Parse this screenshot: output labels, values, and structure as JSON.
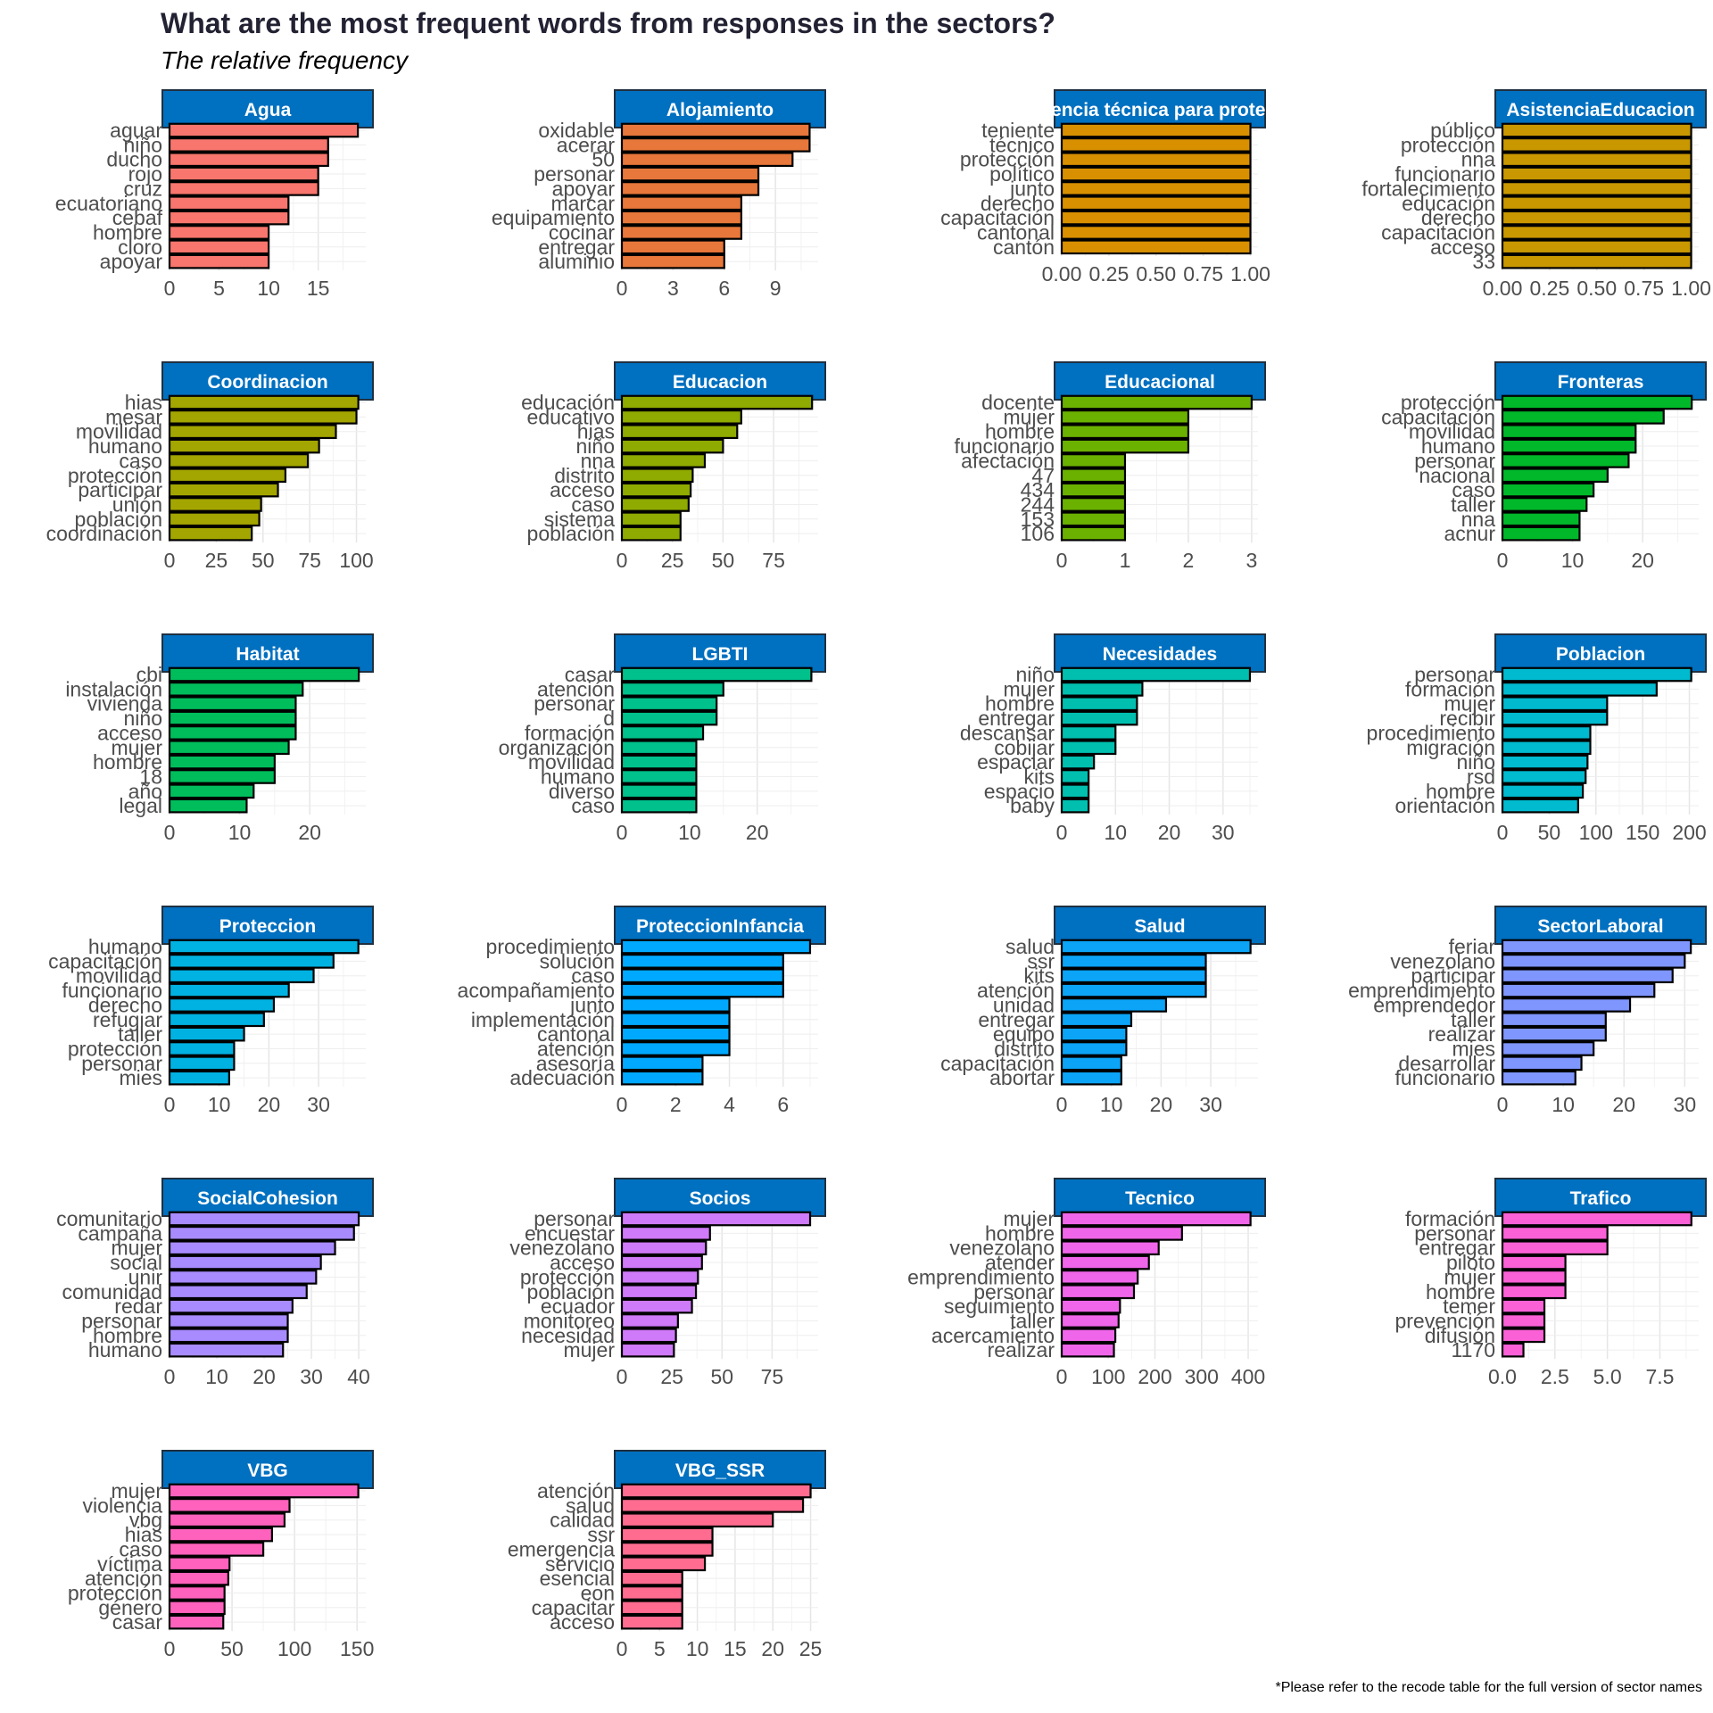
{
  "title": "What are the most frequent words from responses in the sectors?",
  "subtitle": "The relative frequency",
  "caption": "*Please refer to the recode table for the full version of sector names",
  "chart_data": [
    {
      "type": "bar",
      "orientation": "horizontal",
      "facet": "Agua",
      "color": "#F8766D",
      "categories": [
        "aguar",
        "niño",
        "ducho",
        "rojo",
        "cruz",
        "ecuatoriano",
        "cebaf",
        "hombre",
        "cloro",
        "apoyar"
      ],
      "values": [
        19,
        16,
        16,
        15,
        15,
        12,
        12,
        10,
        10,
        10
      ],
      "xlim": [
        0,
        19.8
      ],
      "xticks": [
        0,
        5,
        10,
        15
      ]
    },
    {
      "type": "bar",
      "orientation": "horizontal",
      "facet": "Alojamiento",
      "color": "#E7773A",
      "categories": [
        "oxidable",
        "acerar",
        "50",
        "personar",
        "apoyar",
        "marcar",
        "equipamiento",
        "cocinar",
        "entregar",
        "aluminio"
      ],
      "values": [
        11,
        11,
        10,
        8,
        8,
        7,
        7,
        7,
        6,
        6
      ],
      "xlim": [
        0,
        11.5
      ],
      "xticks": [
        0,
        3,
        6,
        9
      ]
    },
    {
      "type": "bar",
      "orientation": "horizontal",
      "facet": "Asistencia técnica para protección",
      "color": "#D89000",
      "categories": [
        "teniente",
        "técnico",
        "protección",
        "político",
        "junto",
        "derecho",
        "capacitación",
        "cantonal",
        "cantón"
      ],
      "values": [
        1,
        1,
        1,
        1,
        1,
        1,
        1,
        1,
        1
      ],
      "xlim": [
        0,
        1.04
      ],
      "xticks": [
        "0.00",
        "0.25",
        "0.50",
        "0.75",
        "1.00"
      ]
    },
    {
      "type": "bar",
      "orientation": "horizontal",
      "facet": "AsistenciaEducacion",
      "color": "#C99700",
      "categories": [
        "público",
        "protección",
        "nna",
        "funcionario",
        "fortalecimiento",
        "educación",
        "derecho",
        "capacitación",
        "acceso",
        "33"
      ],
      "values": [
        1,
        1,
        1,
        1,
        1,
        1,
        1,
        1,
        1,
        1
      ],
      "xlim": [
        0,
        1.04
      ],
      "xticks": [
        "0.00",
        "0.25",
        "0.50",
        "0.75",
        "1.00"
      ]
    },
    {
      "type": "bar",
      "orientation": "horizontal",
      "facet": "Coordinacion",
      "color": "#A3A500",
      "categories": [
        "hias",
        "mesar",
        "movilidad",
        "humano",
        "caso",
        "protección",
        "participar",
        "unión",
        "población",
        "coordinación"
      ],
      "values": [
        101,
        100,
        89,
        80,
        74,
        62,
        58,
        49,
        48,
        44
      ],
      "xlim": [
        0,
        105
      ],
      "xticks": [
        0,
        25,
        50,
        75,
        100
      ]
    },
    {
      "type": "bar",
      "orientation": "horizontal",
      "facet": "Educacion",
      "color": "#8FAA00",
      "categories": [
        "educación",
        "educativo",
        "hias",
        "niño",
        "nna",
        "distrito",
        "acceso",
        "caso",
        "sistema",
        "población"
      ],
      "values": [
        94,
        59,
        57,
        50,
        41,
        35,
        34,
        33,
        29,
        29
      ],
      "xlim": [
        0,
        97
      ],
      "xticks": [
        0,
        25,
        50,
        75
      ]
    },
    {
      "type": "bar",
      "orientation": "horizontal",
      "facet": "Educacional",
      "color": "#6BB100",
      "categories": [
        "docente",
        "mujer",
        "hombre",
        "funcionario",
        "afectación",
        "47",
        "434",
        "244",
        "153",
        "106"
      ],
      "values": [
        3,
        2,
        2,
        2,
        1,
        1,
        1,
        1,
        1,
        1
      ],
      "xlim": [
        0,
        3.1
      ],
      "xticks": [
        0,
        1,
        2,
        3
      ]
    },
    {
      "type": "bar",
      "orientation": "horizontal",
      "facet": "Fronteras",
      "color": "#00B829",
      "categories": [
        "protección",
        "capacitación",
        "movilidad",
        "humano",
        "personar",
        "nacional",
        "caso",
        "taller",
        "nna",
        "acnur"
      ],
      "values": [
        27,
        23,
        19,
        19,
        18,
        15,
        13,
        12,
        11,
        11
      ],
      "xlim": [
        0,
        28
      ],
      "xticks": [
        0,
        10,
        20
      ]
    },
    {
      "type": "bar",
      "orientation": "horizontal",
      "facet": "Habitat",
      "color": "#00BD5C",
      "categories": [
        "cbi",
        "instalación",
        "vivienda",
        "niño",
        "acceso",
        "mujer",
        "hombre",
        "18",
        "año",
        "legal"
      ],
      "values": [
        27,
        19,
        18,
        18,
        18,
        17,
        15,
        15,
        12,
        11
      ],
      "xlim": [
        0,
        28
      ],
      "xticks": [
        0,
        10,
        20
      ]
    },
    {
      "type": "bar",
      "orientation": "horizontal",
      "facet": "LGBTI",
      "color": "#00C08B",
      "categories": [
        "casar",
        "atención",
        "personar",
        "d",
        "formación",
        "organización",
        "movilidad",
        "humano",
        "diverso",
        "caso"
      ],
      "values": [
        28,
        15,
        14,
        14,
        12,
        11,
        11,
        11,
        11,
        11
      ],
      "xlim": [
        0,
        29
      ],
      "xticks": [
        0,
        10,
        20
      ]
    },
    {
      "type": "bar",
      "orientation": "horizontal",
      "facet": "Necesidades",
      "color": "#00BFAF",
      "categories": [
        "niño",
        "mujer",
        "hombre",
        "entregar",
        "descansar",
        "cobijar",
        "espaciar",
        "kits",
        "espacio",
        "baby"
      ],
      "values": [
        35,
        15,
        14,
        14,
        10,
        10,
        6,
        5,
        5,
        5
      ],
      "xlim": [
        0,
        36.5
      ],
      "xticks": [
        0,
        10,
        20,
        30
      ]
    },
    {
      "type": "bar",
      "orientation": "horizontal",
      "facet": "Poblacion",
      "color": "#00BACF",
      "categories": [
        "personar",
        "formación",
        "mujer",
        "recibir",
        "procedimiento",
        "migración",
        "niño",
        "rsd",
        "hombre",
        "orientación"
      ],
      "values": [
        202,
        165,
        112,
        112,
        94,
        94,
        91,
        89,
        86,
        81
      ],
      "xlim": [
        0,
        210
      ],
      "xticks": [
        0,
        50,
        100,
        150,
        200
      ]
    },
    {
      "type": "bar",
      "orientation": "horizontal",
      "facet": "Proteccion",
      "color": "#00B2E2",
      "categories": [
        "humano",
        "capacitación",
        "movilidad",
        "funcionario",
        "derecho",
        "refugiar",
        "taller",
        "protección",
        "personar",
        "mies"
      ],
      "values": [
        38,
        33,
        29,
        24,
        21,
        19,
        15,
        13,
        13,
        12
      ],
      "xlim": [
        0,
        39.5
      ],
      "xticks": [
        0,
        10,
        20,
        30
      ]
    },
    {
      "type": "bar",
      "orientation": "horizontal",
      "facet": "ProteccionInfancia",
      "color": "#00A9FF",
      "categories": [
        "procedimiento",
        "solución",
        "caso",
        "acompañamiento",
        "junto",
        "implementación",
        "cantonal",
        "atención",
        "asesoría",
        "adecuación"
      ],
      "values": [
        7,
        6,
        6,
        6,
        4,
        4,
        4,
        4,
        3,
        3
      ],
      "xlim": [
        0,
        7.3
      ],
      "xticks": [
        0,
        2,
        4,
        6
      ]
    },
    {
      "type": "bar",
      "orientation": "horizontal",
      "facet": "Salud",
      "color": "#0BA4F7",
      "categories": [
        "salud",
        "ssr",
        "kits",
        "atención",
        "unidad",
        "entregar",
        "equipo",
        "distrito",
        "capacitación",
        "abortar"
      ],
      "values": [
        38,
        29,
        29,
        29,
        21,
        14,
        13,
        13,
        12,
        12
      ],
      "xlim": [
        0,
        39.5
      ],
      "xticks": [
        0,
        10,
        20,
        30
      ]
    },
    {
      "type": "bar",
      "orientation": "horizontal",
      "facet": "SectorLaboral",
      "color": "#7F96FF",
      "categories": [
        "feriar",
        "venezolano",
        "participar",
        "emprendimiento",
        "emprendedor",
        "taller",
        "realizar",
        "mies",
        "desarrollar",
        "funcionario"
      ],
      "values": [
        31,
        30,
        28,
        25,
        21,
        17,
        17,
        15,
        13,
        12
      ],
      "xlim": [
        0,
        32.3
      ],
      "xticks": [
        0,
        10,
        20,
        30
      ]
    },
    {
      "type": "bar",
      "orientation": "horizontal",
      "facet": "SocialCohesion",
      "color": "#A88BFF",
      "categories": [
        "comunitario",
        "campaña",
        "mujer",
        "social",
        "unir",
        "comunidad",
        "redar",
        "personar",
        "hombre",
        "humano"
      ],
      "values": [
        40,
        39,
        35,
        32,
        31,
        29,
        26,
        25,
        25,
        24
      ],
      "xlim": [
        0,
        41.5
      ],
      "xticks": [
        0,
        10,
        20,
        30,
        40
      ]
    },
    {
      "type": "bar",
      "orientation": "horizontal",
      "facet": "Socios",
      "color": "#CF7AF9",
      "categories": [
        "personar",
        "encuestar",
        "venezolano",
        "acceso",
        "protección",
        "población",
        "ecuador",
        "monitoreo",
        "necesidad",
        "mujer"
      ],
      "values": [
        94,
        44,
        42,
        40,
        38,
        37,
        35,
        28,
        27,
        26
      ],
      "xlim": [
        0,
        98
      ],
      "xticks": [
        0,
        25,
        50,
        75
      ]
    },
    {
      "type": "bar",
      "orientation": "horizontal",
      "facet": "Tecnico",
      "color": "#F066EA",
      "categories": [
        "mujer",
        "hombre",
        "venezolano",
        "atender",
        "emprendimiento",
        "personar",
        "seguimiento",
        "taller",
        "acercamiento",
        "realizar"
      ],
      "values": [
        405,
        258,
        208,
        187,
        163,
        155,
        125,
        122,
        115,
        112
      ],
      "xlim": [
        0,
        421
      ],
      "xticks": [
        0,
        100,
        200,
        300,
        400
      ]
    },
    {
      "type": "bar",
      "orientation": "horizontal",
      "facet": "Trafico",
      "color": "#FB61D7",
      "categories": [
        "formación",
        "personar",
        "entregar",
        "piloto",
        "mujer",
        "hombre",
        "temer",
        "prevención",
        "difusión",
        "1170"
      ],
      "values": [
        9,
        5,
        5,
        3,
        3,
        3,
        2,
        2,
        2,
        1
      ],
      "xlim": [
        0,
        9.35
      ],
      "xticks": [
        "0.0",
        "2.5",
        "5.0",
        "7.5"
      ]
    },
    {
      "type": "bar",
      "orientation": "horizontal",
      "facet": "VBG",
      "color": "#FF62BC",
      "categories": [
        "mujer",
        "violencia",
        "vbg",
        "hias",
        "caso",
        "víctima",
        "atención",
        "protección",
        "género",
        "casar"
      ],
      "values": [
        151,
        96,
        92,
        82,
        75,
        48,
        47,
        44,
        44,
        43
      ],
      "xlim": [
        0,
        157
      ],
      "xticks": [
        0,
        50,
        100,
        150
      ]
    },
    {
      "type": "bar",
      "orientation": "horizontal",
      "facet": "VBG_SSR",
      "color": "#FF6C90",
      "categories": [
        "atención",
        "salud",
        "calidad",
        "ssr",
        "emergencia",
        "servicio",
        "esencial",
        "eon",
        "capacitar",
        "acceso"
      ],
      "values": [
        25,
        24,
        20,
        12,
        12,
        11,
        8,
        8,
        8,
        8
      ],
      "xlim": [
        0,
        26
      ],
      "xticks": [
        0,
        5,
        10,
        15,
        20,
        25
      ]
    }
  ]
}
